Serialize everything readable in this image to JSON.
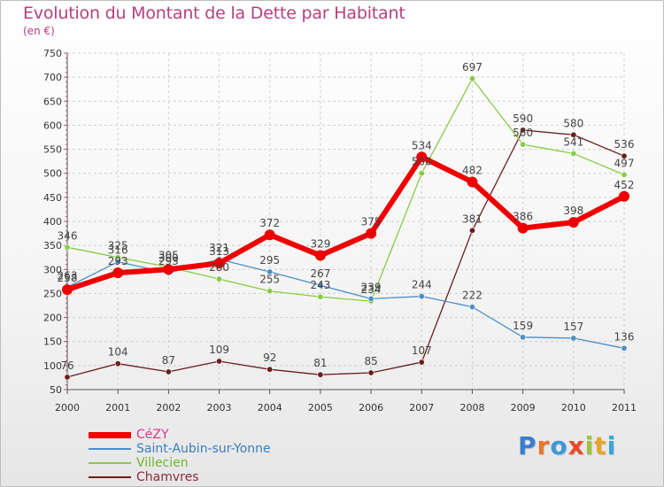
{
  "title": "Evolution du Montant de la Dette par Habitant",
  "subtitle": "(en €)",
  "brand": {
    "letters": [
      {
        "ch": "P",
        "color": "#3a7fd1"
      },
      {
        "ch": "r",
        "color": "#e8742a"
      },
      {
        "ch": "o",
        "color": "#3a9ad9"
      },
      {
        "ch": "x",
        "color": "#e84a2a"
      },
      {
        "ch": "i",
        "color": "#9bc43a"
      },
      {
        "ch": "t",
        "color": "#e8a52a"
      },
      {
        "ch": "i",
        "color": "#3aa5d9"
      }
    ]
  },
  "chart_data": {
    "type": "line",
    "x": [
      "2000",
      "2001",
      "2002",
      "2003",
      "2004",
      "2005",
      "2006",
      "2007",
      "2008",
      "2009",
      "2010",
      "2011"
    ],
    "ylim": [
      50,
      750
    ],
    "yticks": [
      50,
      100,
      150,
      200,
      250,
      300,
      350,
      400,
      450,
      500,
      550,
      600,
      650,
      700,
      750
    ],
    "grid": true,
    "legend_position": "bottom-left",
    "series": [
      {
        "name": "Chamvres",
        "color": "#6b1c1c",
        "values": [
          76,
          104,
          87,
          109,
          92,
          81,
          85,
          107,
          381,
          590,
          580,
          536
        ]
      },
      {
        "name": "Villecien",
        "color": "#86cc46",
        "values": [
          346,
          325,
          305,
          280,
          255,
          243,
          234,
          500,
          697,
          560,
          541,
          497
        ]
      },
      {
        "name": "Saint-Aubin-sur-Yonne",
        "color": "#4a8ec9",
        "values": [
          263,
          316,
          293,
          321,
          295,
          267,
          239,
          244,
          222,
          159,
          157,
          136
        ]
      },
      {
        "name": "CéZY",
        "color": "#ee0000",
        "values": [
          258,
          293,
          300,
          313,
          372,
          329,
          375,
          534,
          482,
          386,
          398,
          452
        ]
      }
    ],
    "legend_order": [
      "CéZY",
      "Saint-Aubin-sur-Yonne",
      "Villecien",
      "Chamvres"
    ]
  }
}
